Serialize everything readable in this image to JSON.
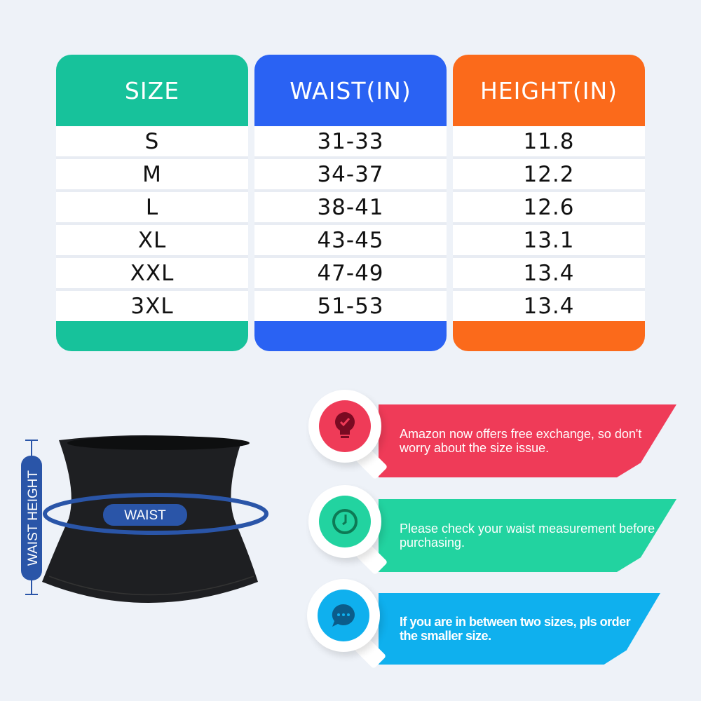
{
  "table": {
    "columns": [
      {
        "header": "SIZE",
        "color": "#17c29b",
        "values": [
          "S",
          "M",
          "L",
          "XL",
          "XXL",
          "3XL"
        ]
      },
      {
        "header": "WAIST(IN)",
        "color": "#2a62f3",
        "values": [
          "31-33",
          "34-37",
          "38-41",
          "43-45",
          "47-49",
          "51-53"
        ]
      },
      {
        "header": "HEIGHT(IN)",
        "color": "#fb6a1b",
        "values": [
          "11.8",
          "12.2",
          "12.6",
          "13.1",
          "13.4",
          "13.4"
        ]
      }
    ]
  },
  "diagram": {
    "waist_label": "WAIST",
    "height_label": "WAIST HEIGHT",
    "accent": "#2a55a8"
  },
  "tips": [
    {
      "text": "Amazon now offers free exchange, so don't worry about the size issue.",
      "color": "#ef3b58",
      "icon": "lightbulb-check-icon"
    },
    {
      "text": "Please check your waist measurement before purchasing.",
      "color": "#22d3a0",
      "icon": "clock-icon"
    },
    {
      "text": "If you are in between two sizes, pls order the smaller size.",
      "color": "#0fb0ee",
      "icon": "chat-bubble-icon"
    }
  ]
}
